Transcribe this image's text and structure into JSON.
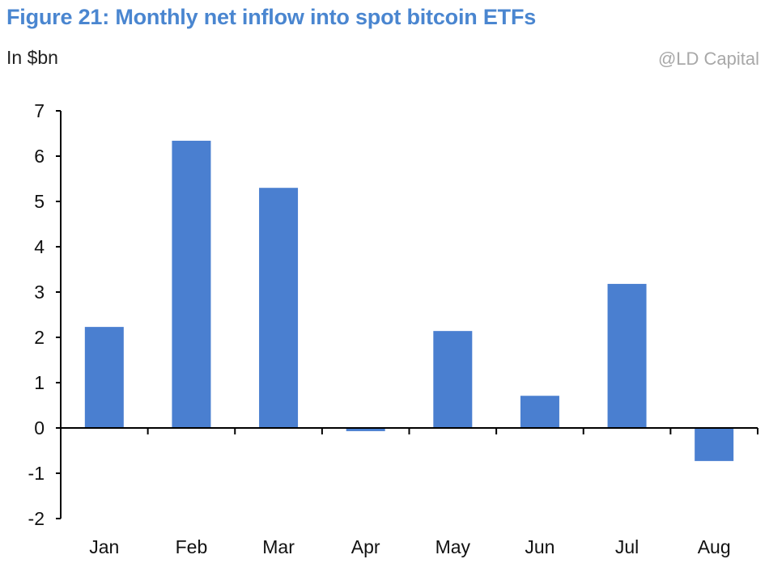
{
  "chart_data": {
    "type": "bar",
    "title": "Figure 21: Monthly net inflow into spot bitcoin ETFs",
    "ylabel": "In $bn",
    "xlabel": "",
    "categories": [
      "Jan",
      "Feb",
      "Mar",
      "Apr",
      "May",
      "Jun",
      "Jul",
      "Aug"
    ],
    "values": [
      2.23,
      6.34,
      5.3,
      -0.07,
      2.14,
      0.71,
      3.18,
      -0.73
    ],
    "ylim": [
      -2,
      7
    ],
    "yticks": [
      -2,
      -1,
      0,
      1,
      2,
      3,
      4,
      5,
      6,
      7
    ],
    "grid": false,
    "legend": "none",
    "bar_color": "#4a7fd0",
    "title_color": "#4a86d0"
  },
  "watermark": "@LD Capital"
}
